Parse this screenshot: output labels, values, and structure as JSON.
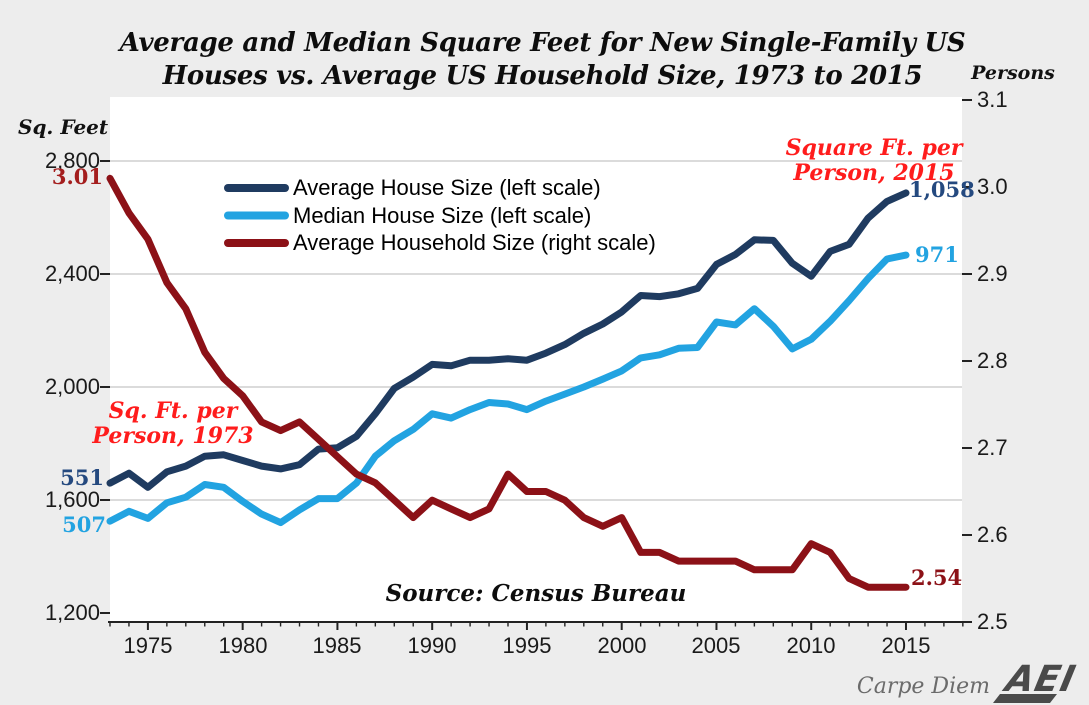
{
  "title": {
    "line1": "Average and Median Square Feet for New Single-Family US",
    "line2": "Houses vs. Average US Household Size, 1973 to 2015"
  },
  "axes": {
    "left": {
      "label": "Sq. Feet",
      "ticks": [
        "2,800",
        "2,400",
        "2,000",
        "1,600",
        "1,200"
      ]
    },
    "right": {
      "label": "Persons",
      "ticks": [
        "3.1",
        "3.0",
        "2.9",
        "2.8",
        "2.7",
        "2.6",
        "2.5"
      ]
    },
    "x": {
      "ticks": [
        "1975",
        "1980",
        "1985",
        "1990",
        "1995",
        "2000",
        "2005",
        "2010",
        "2015"
      ]
    }
  },
  "legend": [
    {
      "label": "Average House Size (left scale)",
      "color": "#1f3b60"
    },
    {
      "label": "Median House Size (left scale)",
      "color": "#22a3e1"
    },
    {
      "label": "Average Household Size (right scale)",
      "color": "#8c1117"
    }
  ],
  "annotations": {
    "hh_start": "3.01",
    "avg_start": "551",
    "med_start": "507",
    "note1973_line1": "Sq. Ft. per",
    "note1973_line2": "Person, 1973",
    "note2015_line1": "Square Ft. per",
    "note2015_line2": "Person, 2015",
    "avg_end": "1,058",
    "med_end": "971",
    "hh_end": "2.54"
  },
  "source": "Source: Census Bureau",
  "branding": {
    "carpe_diem": "Carpe Diem",
    "logo": "AEI"
  },
  "colors": {
    "navy": "#1f3b60",
    "light_blue": "#22a3e1",
    "dark_red": "#8c1117",
    "bright_red": "#ff1c1c",
    "number_blue": "#24497f",
    "number_red": "#a41e1e",
    "background": "#ededed",
    "plot_background": "#ffffff",
    "gridline": "#cfcfcf",
    "axis": "#222222",
    "brand_gray": "#6b6b6b",
    "logo_gray": "#4a4a4a"
  },
  "chart_data": {
    "type": "line",
    "title": "Average and Median Square Feet for New Single-Family US Houses vs. Average US Household Size, 1973 to 2015",
    "x": [
      1973,
      1974,
      1975,
      1976,
      1977,
      1978,
      1979,
      1980,
      1981,
      1982,
      1983,
      1984,
      1985,
      1986,
      1987,
      1988,
      1989,
      1990,
      1991,
      1992,
      1993,
      1994,
      1995,
      1996,
      1997,
      1998,
      1999,
      2000,
      2001,
      2002,
      2003,
      2004,
      2005,
      2006,
      2007,
      2008,
      2009,
      2010,
      2011,
      2012,
      2013,
      2014,
      2015
    ],
    "series": [
      {
        "name": "Average House Size (left scale)",
        "axis": "left",
        "color": "#1f3b60",
        "values": [
          1660,
          1695,
          1645,
          1700,
          1720,
          1755,
          1760,
          1740,
          1720,
          1710,
          1725,
          1780,
          1785,
          1825,
          1905,
          1995,
          2035,
          2080,
          2075,
          2095,
          2095,
          2100,
          2095,
          2120,
          2150,
          2190,
          2223,
          2266,
          2324,
          2320,
          2330,
          2349,
          2434,
          2469,
          2521,
          2519,
          2438,
          2392,
          2480,
          2505,
          2598,
          2657,
          2687
        ]
      },
      {
        "name": "Median House Size (left scale)",
        "axis": "left",
        "color": "#22a3e1",
        "values": [
          1525,
          1560,
          1535,
          1590,
          1610,
          1655,
          1645,
          1595,
          1550,
          1520,
          1565,
          1605,
          1605,
          1660,
          1755,
          1810,
          1850,
          1905,
          1890,
          1920,
          1945,
          1940,
          1920,
          1950,
          1975,
          2000,
          2028,
          2057,
          2103,
          2114,
          2137,
          2140,
          2230,
          2220,
          2277,
          2215,
          2135,
          2169,
          2233,
          2306,
          2384,
          2453,
          2467
        ]
      },
      {
        "name": "Average Household Size (right scale)",
        "axis": "right",
        "color": "#8c1117",
        "values": [
          3.01,
          2.97,
          2.94,
          2.89,
          2.86,
          2.81,
          2.78,
          2.76,
          2.73,
          2.72,
          2.73,
          2.71,
          2.69,
          2.67,
          2.66,
          2.64,
          2.62,
          2.64,
          2.63,
          2.62,
          2.63,
          2.67,
          2.65,
          2.65,
          2.64,
          2.62,
          2.61,
          2.62,
          2.58,
          2.58,
          2.57,
          2.57,
          2.57,
          2.57,
          2.56,
          2.56,
          2.56,
          2.59,
          2.58,
          2.55,
          2.54,
          2.54,
          2.54
        ]
      }
    ],
    "left_axis": {
      "label": "Sq. Feet",
      "range": [
        1200,
        2800
      ],
      "tick_step": 400
    },
    "right_axis": {
      "label": "Persons",
      "range": [
        2.5,
        3.1
      ],
      "tick_step": 0.1
    },
    "x_axis": {
      "range": [
        1973,
        2018
      ],
      "major_tick_labels": [
        1975,
        1980,
        1985,
        1990,
        1995,
        2000,
        2005,
        2010,
        2015
      ],
      "minor_ticks_every_year": true
    },
    "grid": "horizontal",
    "legend_position": "top-left-inside",
    "endpoint_callouts": {
      "household_size_1973": 3.01,
      "household_size_2015": 2.54,
      "avg_sqft_per_person_1973": 551,
      "median_sqft_per_person_1973": 507,
      "avg_sqft_per_person_2015": 1058,
      "median_sqft_per_person_2015": 971
    }
  }
}
